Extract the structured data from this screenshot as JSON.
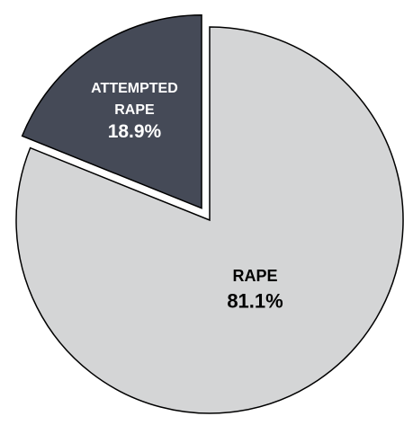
{
  "chart_data": {
    "type": "pie",
    "slices": [
      {
        "label_lines": [
          "RAPE"
        ],
        "value": 81.1,
        "value_label": "81.1%",
        "color": "#d4d5d6",
        "text_color": "#000000",
        "exploded": false
      },
      {
        "label_lines": [
          "ATTEMPTED",
          "RAPE"
        ],
        "value": 18.9,
        "value_label": "18.9%",
        "color": "#454a57",
        "text_color": "#ffffff",
        "exploded": true
      }
    ],
    "start": "12 o'clock",
    "direction": "clockwise",
    "outline_color": "#000000"
  }
}
